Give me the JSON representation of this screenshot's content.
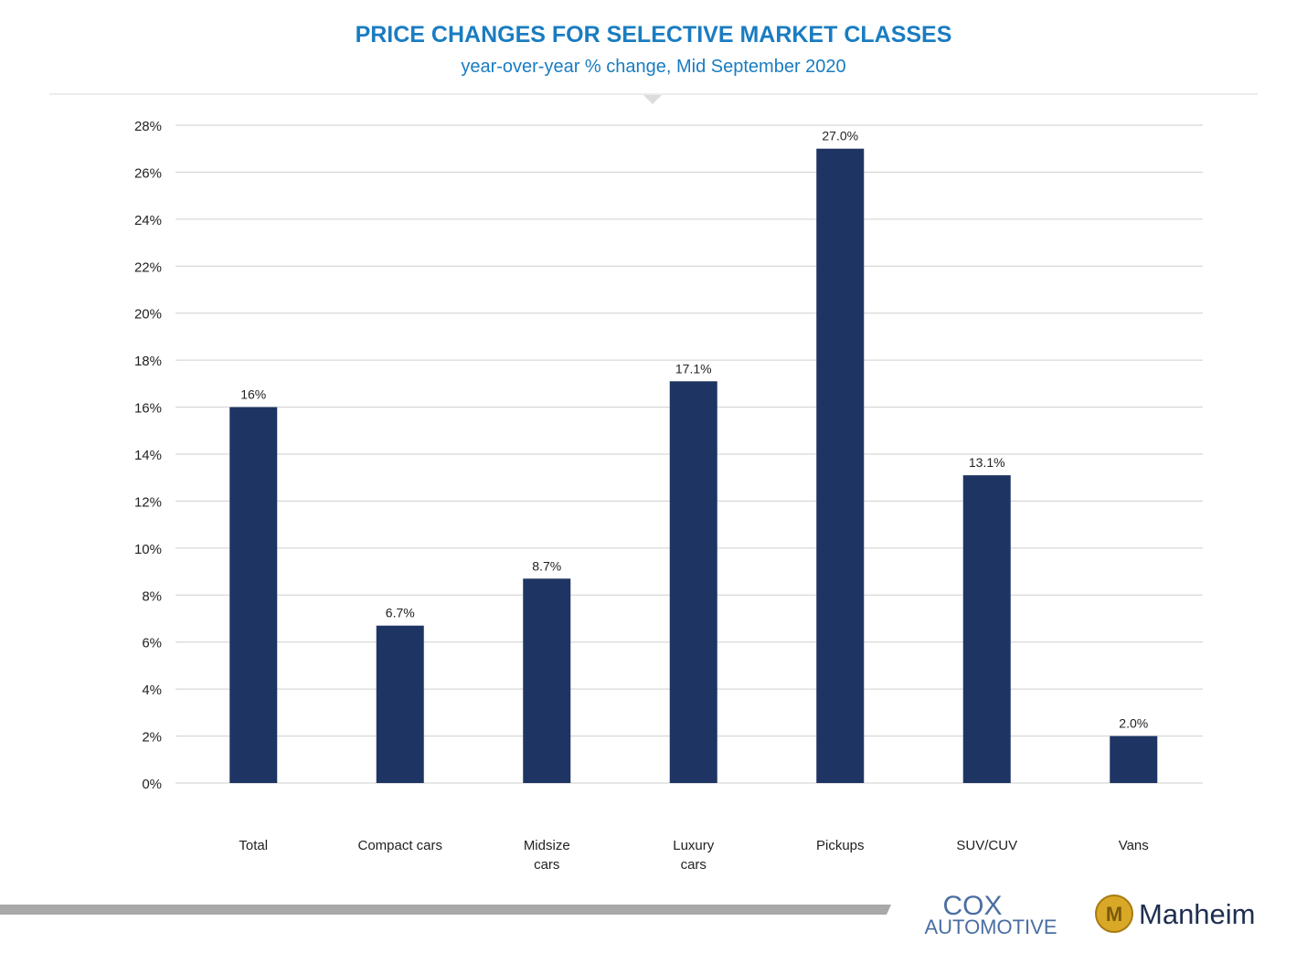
{
  "chart_data": {
    "type": "bar",
    "title": "PRICE CHANGES FOR SELECTIVE MARKET CLASSES",
    "subtitle": "year-over-year % change, Mid September 2020",
    "categories": [
      "Total",
      "Compact cars",
      "Midsize\ncars",
      "Luxury\ncars",
      "Pickups",
      "SUV/CUV",
      "Vans"
    ],
    "values": [
      16,
      6.7,
      8.7,
      17.1,
      27.0,
      13.1,
      2.0
    ],
    "value_labels": [
      "16%",
      "6.7%",
      "8.7%",
      "17.1%",
      "27.0%",
      "13.1%",
      "2.0%"
    ],
    "color": "#1e3564",
    "ylim": [
      0,
      28
    ],
    "yticks": [
      {
        "value": 0,
        "label": "0%"
      },
      {
        "value": 2,
        "label": "2%"
      },
      {
        "value": 4,
        "label": "4%"
      },
      {
        "value": 6,
        "label": "6%"
      },
      {
        "value": 8,
        "label": "8%"
      },
      {
        "value": 10,
        "label": "10%"
      },
      {
        "value": 12,
        "label": "12%"
      },
      {
        "value": 14,
        "label": "14%"
      },
      {
        "value": 16,
        "label": "16%"
      },
      {
        "value": 18,
        "label": "18%"
      },
      {
        "value": 20,
        "label": "20%"
      },
      {
        "value": 22,
        "label": "22%"
      },
      {
        "value": 24,
        "label": "24%"
      },
      {
        "value": 26,
        "label": "26%"
      },
      {
        "value": 28,
        "label": "28%"
      }
    ],
    "grid": true
  },
  "logos": {
    "cox_top": "COX",
    "cox_bottom": "AUTOMOTIVE",
    "manheim": "Manheim"
  }
}
